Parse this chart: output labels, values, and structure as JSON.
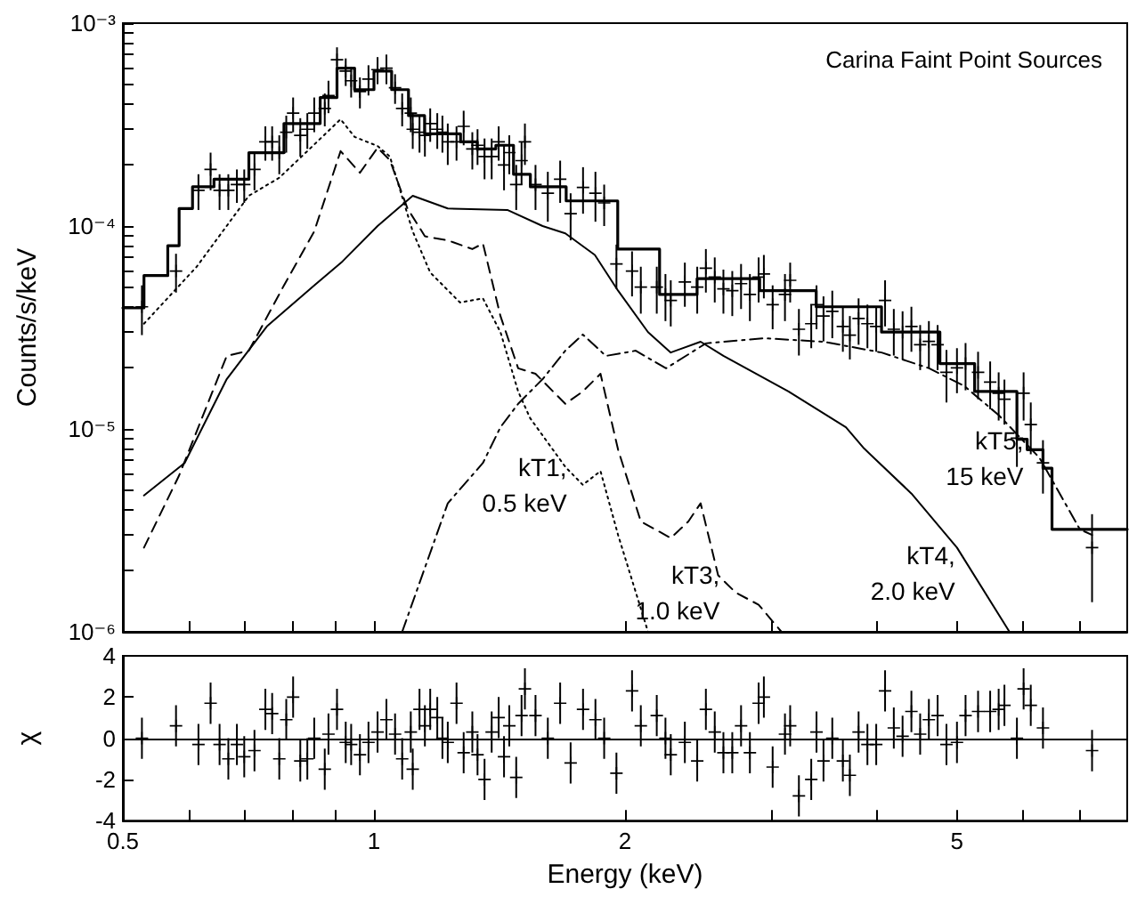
{
  "chart_data": [
    {
      "type": "line",
      "title": "Carina Faint Point Sources",
      "ylabel": "Counts/s/keV",
      "log": "xy",
      "tick_labels": "y",
      "xlim": [
        0.5,
        8
      ],
      "xticks": [
        0.5,
        {
          "value": 0.6,
          "label": null
        },
        {
          "value": 0.7,
          "label": null
        },
        {
          "value": 0.8,
          "label": null
        },
        {
          "value": 0.9,
          "label": null
        },
        1,
        2,
        {
          "value": 3,
          "label": null
        },
        {
          "value": 4,
          "label": null
        },
        5,
        {
          "value": 6,
          "label": null
        },
        {
          "value": 7,
          "label": null
        }
      ],
      "ylim": [
        1e-06,
        0.001
      ],
      "yticks": [
        {
          "value": 1e-06,
          "label": "10⁻⁶"
        },
        {
          "value": 2e-06,
          "label": null
        },
        {
          "value": 3e-06,
          "label": null
        },
        {
          "value": 4e-06,
          "label": null
        },
        {
          "value": 5e-06,
          "label": null
        },
        {
          "value": 6e-06,
          "label": null
        },
        {
          "value": 7e-06,
          "label": null
        },
        {
          "value": 8e-06,
          "label": null
        },
        {
          "value": 9e-06,
          "label": null
        },
        {
          "value": 1e-05,
          "label": "10⁻⁵"
        },
        {
          "value": 2e-05,
          "label": null
        },
        {
          "value": 3e-05,
          "label": null
        },
        {
          "value": 4e-05,
          "label": null
        },
        {
          "value": 5e-05,
          "label": null
        },
        {
          "value": 6e-05,
          "label": null
        },
        {
          "value": 7e-05,
          "label": null
        },
        {
          "value": 8e-05,
          "label": null
        },
        {
          "value": 9e-05,
          "label": null
        },
        {
          "value": 0.0001,
          "label": "10⁻⁴"
        },
        {
          "value": 0.0002,
          "label": null
        },
        {
          "value": 0.0003,
          "label": null
        },
        {
          "value": 0.0004,
          "label": null
        },
        {
          "value": 0.0005,
          "label": null
        },
        {
          "value": 0.0006,
          "label": null
        },
        {
          "value": 0.0007,
          "label": null
        },
        {
          "value": 0.0008,
          "label": null
        },
        {
          "value": 0.0009,
          "label": null
        },
        {
          "value": 0.001,
          "label": "10⁻³"
        }
      ],
      "annotations": [
        {
          "text": "kT1,\n0.5 keV",
          "x": 1.78,
          "y": 5.3e-06
        },
        {
          "text": "kT3,\n1.0 keV",
          "x": 2.715,
          "y": 1.56e-06
        },
        {
          "text": "kT4,\n2.0 keV",
          "x": 5.2,
          "y": 1.95e-06
        },
        {
          "text": "kT5,\n15 keV",
          "x": 6.28,
          "y": 7.2e-06
        }
      ],
      "series": [
        {
          "type": "scatter",
          "marker": "cross",
          "color": "#000000",
          "x": [
            0.527,
            0.579,
            0.616,
            0.637,
            0.653,
            0.669,
            0.685,
            0.699,
            0.719,
            0.741,
            0.755,
            0.77,
            0.785,
            0.8,
            0.816,
            0.832,
            0.848,
            0.873,
            0.882,
            0.903,
            0.925,
            0.939,
            0.962,
            0.985,
            1.01,
            1.035,
            1.06,
            1.081,
            1.107,
            1.113,
            1.134,
            1.151,
            1.168,
            1.191,
            1.208,
            1.226,
            1.256,
            1.281,
            1.312,
            1.331,
            1.357,
            1.384,
            1.411,
            1.432,
            1.453,
            1.481,
            1.503,
            1.517,
            1.562,
            1.616,
            1.672,
            1.721,
            1.781,
            1.843,
            1.888,
            1.953,
            2.039,
            2.089,
            2.183,
            2.236,
            2.269,
            2.359,
            2.441,
            2.5,
            2.562,
            2.624,
            2.689,
            2.755,
            2.823,
            2.892,
            2.934,
            3.006,
            3.11,
            3.155,
            3.232,
            3.344,
            3.393,
            3.459,
            3.544,
            3.649,
            3.72,
            3.811,
            3.905,
            4.001,
            4.1,
            4.2,
            4.303,
            4.409,
            4.517,
            4.627,
            4.74,
            4.857,
            5.0,
            5.12,
            5.3,
            5.48,
            5.61,
            5.7,
            5.9,
            6.01,
            6.13,
            6.34,
            7.26
          ],
          "values": [
            4e-05,
            6e-05,
            0.00015,
            0.00019,
            0.00015,
            0.00015,
            0.00016,
            0.00016,
            0.00019,
            0.00026,
            0.00026,
            0.00023,
            0.00029,
            0.00036,
            0.00028,
            0.0003,
            0.00036,
            0.00038,
            0.00044,
            0.00066,
            0.00058,
            0.00052,
            0.00046,
            0.00053,
            0.00059,
            0.0006,
            0.00048,
            0.00038,
            0.00036,
            0.0003,
            0.00029,
            0.00028,
            0.00032,
            0.0003,
            0.00029,
            0.00026,
            0.00026,
            0.00031,
            0.00024,
            0.00025,
            0.00022,
            0.00022,
            0.00026,
            0.0002,
            0.00023,
            0.00016,
            0.00021,
            0.00026,
            0.00016,
            0.000145,
            0.00017,
            0.000115,
            0.000155,
            0.000145,
            0.00013,
            6.5e-05,
            6e-05,
            5e-05,
            5e-05,
            4.6e-05,
            4.3e-05,
            5.3e-05,
            5e-05,
            6.2e-05,
            5.6e-05,
            4.9e-05,
            4.8e-05,
            5.2e-05,
            4.6e-05,
            5.6e-05,
            5.8e-05,
            4.1e-05,
            4.6e-05,
            5.4e-05,
            3.1e-05,
            3.3e-05,
            4.1e-05,
            3.6e-05,
            3.8e-05,
            3.2e-05,
            2.9e-05,
            3.5e-05,
            3.3e-05,
            3.2e-05,
            4.3e-05,
            3.1e-05,
            3e-05,
            3.2e-05,
            2.6e-05,
            2.7e-05,
            2.6e-05,
            1.9e-05,
            2e-05,
            2.1e-05,
            1.9e-05,
            1.7e-05,
            1.5e-05,
            1.4e-05,
            9e-06,
            1.5e-05,
            1.05e-05,
            6.8e-06,
            2.6e-06
          ],
          "errors": [
            1.1e-05,
            1.3e-05,
            3e-05,
            4e-05,
            3e-05,
            3e-05,
            3e-05,
            3e-05,
            4e-05,
            5e-05,
            5e-05,
            5e-05,
            6e-05,
            7e-05,
            6e-05,
            6e-05,
            7e-05,
            7e-05,
            8e-05,
            0.0001,
            9e-05,
            9e-05,
            8e-05,
            9e-05,
            9e-05,
            0.0001,
            8e-05,
            7e-05,
            7e-05,
            6e-05,
            6e-05,
            6e-05,
            6e-05,
            6e-05,
            6e-05,
            6e-05,
            5e-05,
            6e-05,
            5e-05,
            5e-05,
            5e-05,
            5e-05,
            5e-05,
            5e-05,
            5e-05,
            4e-05,
            5e-05,
            6e-05,
            4e-05,
            4e-05,
            4e-05,
            3e-05,
            4e-05,
            4e-05,
            3e-05,
            1.6e-05,
            1.5e-05,
            1.3e-05,
            1.3e-05,
            1.2e-05,
            1.1e-05,
            1.3e-05,
            1.3e-05,
            1.5e-05,
            1.4e-05,
            1.2e-05,
            1.2e-05,
            1.3e-05,
            1.2e-05,
            1.4e-05,
            1.4e-05,
            1e-05,
            1.2e-05,
            1.2e-05,
            8e-06,
            8e-06,
            1e-05,
            9e-06,
            1e-05,
            8e-06,
            7e-06,
            9e-06,
            8e-06,
            8e-06,
            1.1e-05,
            8e-06,
            8e-06,
            8e-06,
            6.5e-06,
            7e-06,
            6.5e-06,
            5.5e-06,
            5e-06,
            5.5e-06,
            5e-06,
            4.5e-06,
            4e-06,
            3.5e-06,
            2.5e-06,
            4e-06,
            3e-06,
            2e-06,
            1.2e-06
          ]
        },
        {
          "type": "step",
          "color": "#000000",
          "line_style": "solid",
          "x": [
            0.5,
            0.53,
            0.566,
            0.584,
            0.606,
            0.643,
            0.708,
            0.78,
            0.862,
            0.903,
            0.948,
            1.0,
            1.05,
            1.1,
            1.15,
            1.27,
            1.33,
            1.4,
            1.47,
            1.54,
            1.7,
            1.83,
            1.96,
            2.2,
            2.44,
            2.9,
            3.39,
            4.06,
            4.77,
            5.25,
            5.9,
            6.07,
            6.34,
            6.5,
            8
          ],
          "values": [
            3.95e-05,
            5.7e-05,
            8e-05,
            0.000122,
            0.000156,
            0.00017,
            0.00023,
            0.00032,
            0.00043,
            0.0006,
            0.00047,
            0.00058,
            0.00047,
            0.00035,
            0.000285,
            0.00026,
            0.00024,
            0.00025,
            0.00018,
            0.000156,
            0.000133,
            0.000133,
            7.7e-05,
            4.6e-05,
            5.5e-05,
            4.8e-05,
            4e-05,
            3e-05,
            2.1e-05,
            1.53e-05,
            8.9e-06,
            7.9e-06,
            6.4e-06,
            3.2e-06,
            3.2e-06
          ]
        },
        {
          "color": "#000000",
          "line_style": "dotted",
          "x": [
            0.53,
            0.613,
            0.708,
            0.77,
            0.832,
            0.912,
            0.948,
            1.01,
            1.045,
            1.113,
            1.168,
            1.268,
            1.351,
            1.418,
            1.489,
            1.539,
            1.696,
            1.78,
            1.869,
            1.962,
            2.131
          ],
          "values": [
            3.3e-05,
            6.3e-05,
            0.000141,
            0.000173,
            0.000234,
            0.000336,
            0.000275,
            0.000248,
            0.00022,
            9.4e-05,
            5.9e-05,
            4.2e-05,
            4.4e-05,
            3e-05,
            1.53e-05,
            1.13e-05,
            6.5e-06,
            5.3e-06,
            6.2e-06,
            3e-06,
            1e-06
          ]
        },
        {
          "color": "#000000",
          "line_style": "dashed",
          "x": [
            0.53,
            0.584,
            0.666,
            0.708,
            0.78,
            0.848,
            0.912,
            0.962,
            1.01,
            1.045,
            1.097,
            1.151,
            1.226,
            1.312,
            1.351,
            1.418,
            1.489,
            1.562,
            1.696,
            1.78,
            1.869,
            1.962,
            2.089,
            2.269,
            2.382,
            2.464,
            2.586,
            2.715,
            2.892,
            3.08
          ],
          "values": [
            2.6e-06,
            5.9e-06,
            2.29e-05,
            2.43e-05,
            5.1e-05,
            9.4e-05,
            0.000234,
            0.000183,
            0.000243,
            0.000211,
            0.000122,
            8.9e-05,
            8.5e-05,
            7.7e-05,
            8.2e-05,
            3.6e-05,
            1.99e-05,
            1.87e-05,
            1.33e-05,
            1.53e-05,
            1.87e-05,
            7.9e-06,
            3.5e-06,
            2.9e-06,
            3.5e-06,
            4.3e-06,
            1.9e-06,
            1.56e-06,
            1.36e-06,
            1e-06
          ]
        },
        {
          "color": "#000000",
          "line_style": "solid",
          "x": [
            0.53,
            0.593,
            0.666,
            0.744,
            0.848,
            0.917,
            1.01,
            1.113,
            1.226,
            1.445,
            1.593,
            1.696,
            1.84,
            1.962,
            2.131,
            2.269,
            2.464,
            2.624,
            3.14,
            3.68,
            3.87,
            4.41,
            5.0,
            5.78
          ],
          "values": [
            4.7e-06,
            6.8e-06,
            1.76e-05,
            3.2e-05,
            5.1e-05,
            6.7e-05,
            0.0001,
            0.000141,
            0.000122,
            0.00012,
            0.0001,
            9.2e-05,
            7.2e-05,
            4.8e-05,
            3e-05,
            2.38e-05,
            2.69e-05,
            2.29e-05,
            1.53e-05,
            1.02e-05,
            8e-06,
            4.8e-06,
            2.6e-06,
            1e-06
          ]
        },
        {
          "color": "#000000",
          "line_style": "dashdot",
          "x": [
            1.081,
            1.226,
            1.351,
            1.418,
            1.489,
            1.593,
            1.696,
            1.78,
            1.897,
            2.06,
            2.24,
            2.5,
            2.93,
            3.46,
            4.06,
            4.63,
            5.1,
            5.61,
            6.28,
            7.02,
            7.26
          ],
          "values": [
            1e-06,
            4.3e-06,
            6.8e-06,
            1.02e-05,
            1.33e-05,
            1.76e-05,
            2.43e-05,
            2.92e-05,
            2.29e-05,
            2.43e-05,
            1.99e-05,
            2.64e-05,
            2.8e-05,
            2.69e-05,
            2.38e-05,
            1.99e-05,
            1.63e-05,
            1.17e-05,
            7.2e-06,
            3.2e-06,
            3e-06
          ]
        }
      ]
    },
    {
      "type": "scatter",
      "xlabel": "Energy (keV)",
      "ylabel": "χ",
      "log": "x",
      "xlim": [
        0.5,
        8
      ],
      "xticks": [
        0.5,
        {
          "value": 0.6,
          "label": null
        },
        {
          "value": 0.7,
          "label": null
        },
        {
          "value": 0.8,
          "label": null
        },
        {
          "value": 0.9,
          "label": null
        },
        1,
        2,
        {
          "value": 3,
          "label": null
        },
        {
          "value": 4,
          "label": null
        },
        5,
        {
          "value": 6,
          "label": null
        },
        {
          "value": 7,
          "label": null
        }
      ],
      "ylim": [
        -4,
        4
      ],
      "yticks": [
        -4,
        -2,
        0,
        2,
        4
      ],
      "ref_lines": [
        {
          "axis": "y",
          "value": 0,
          "color": "#000000"
        }
      ],
      "series": [
        {
          "marker": "cross",
          "color": "#000000",
          "x": [
            0.527,
            0.579,
            0.616,
            0.637,
            0.653,
            0.669,
            0.685,
            0.699,
            0.719,
            0.741,
            0.755,
            0.77,
            0.785,
            0.8,
            0.816,
            0.832,
            0.848,
            0.873,
            0.882,
            0.903,
            0.925,
            0.939,
            0.962,
            0.985,
            1.01,
            1.035,
            1.06,
            1.081,
            1.107,
            1.113,
            1.134,
            1.151,
            1.168,
            1.191,
            1.208,
            1.226,
            1.256,
            1.281,
            1.312,
            1.331,
            1.357,
            1.384,
            1.411,
            1.432,
            1.453,
            1.481,
            1.503,
            1.517,
            1.562,
            1.616,
            1.672,
            1.721,
            1.781,
            1.843,
            1.888,
            1.953,
            2.039,
            2.089,
            2.183,
            2.236,
            2.269,
            2.359,
            2.441,
            2.5,
            2.562,
            2.624,
            2.689,
            2.755,
            2.823,
            2.892,
            2.934,
            3.006,
            3.11,
            3.155,
            3.232,
            3.344,
            3.393,
            3.459,
            3.544,
            3.649,
            3.72,
            3.811,
            3.905,
            4.001,
            4.1,
            4.2,
            4.303,
            4.409,
            4.517,
            4.627,
            4.74,
            4.857,
            5.0,
            5.12,
            5.3,
            5.48,
            5.61,
            5.7,
            5.9,
            6.01,
            6.13,
            6.34,
            7.26
          ],
          "values": [
            0,
            0.6,
            -0.3,
            1.7,
            -0.3,
            -1,
            -0.3,
            -0.9,
            -0.6,
            1.4,
            1.2,
            -1,
            0.9,
            2,
            -1.1,
            -1,
            0,
            -1.5,
            0.2,
            1.4,
            -0.2,
            -0.3,
            -0.8,
            -0.2,
            0.3,
            0.9,
            0.2,
            -1,
            0.3,
            -1.5,
            1.4,
            0.6,
            1.4,
            1,
            0,
            -0.2,
            1.7,
            -0.7,
            0.3,
            -0.8,
            -2,
            0.3,
            1,
            -0.9,
            0.6,
            -1.9,
            1.1,
            2.4,
            1.1,
            0,
            1.7,
            -1.2,
            1.4,
            0.9,
            0,
            -1.7,
            2.3,
            0.6,
            1.1,
            0,
            -0.8,
            -0.2,
            -1.1,
            1.4,
            0.3,
            -0.7,
            -0.7,
            0.6,
            -0.7,
            1.7,
            2,
            -1.4,
            0.2,
            0.6,
            -2.8,
            -2,
            0.3,
            -1.1,
            0,
            -1.1,
            -1.8,
            0.3,
            -0.3,
            -0.3,
            2.3,
            0.5,
            0.1,
            1.3,
            0.2,
            0.9,
            1.1,
            -0.3,
            -0.2,
            1.1,
            1.3,
            1.3,
            1.4,
            1.6,
            0,
            2.4,
            1.6,
            0.5,
            -0.6
          ],
          "errors": [
            1,
            1,
            1,
            1,
            1,
            1,
            1,
            1,
            1,
            1,
            1,
            1,
            1,
            1,
            1,
            1,
            1,
            1,
            1,
            1,
            1,
            1,
            1,
            1,
            1,
            1,
            1,
            1,
            1,
            1,
            1,
            1,
            1,
            1,
            1,
            1,
            1,
            1,
            1,
            1,
            1,
            1,
            1,
            1,
            1,
            1,
            1,
            1,
            1,
            1,
            1,
            1,
            1,
            1,
            1,
            1,
            1,
            1,
            1,
            1,
            1,
            1,
            1,
            1,
            1,
            1,
            1,
            1,
            1,
            1,
            1,
            1,
            1,
            1,
            1,
            1,
            1,
            1,
            1,
            1,
            1,
            1,
            1,
            1,
            1,
            1,
            1,
            1,
            1,
            1,
            1,
            1,
            1,
            1,
            1,
            1,
            1,
            1,
            1,
            1,
            1,
            1,
            1
          ]
        }
      ]
    }
  ]
}
